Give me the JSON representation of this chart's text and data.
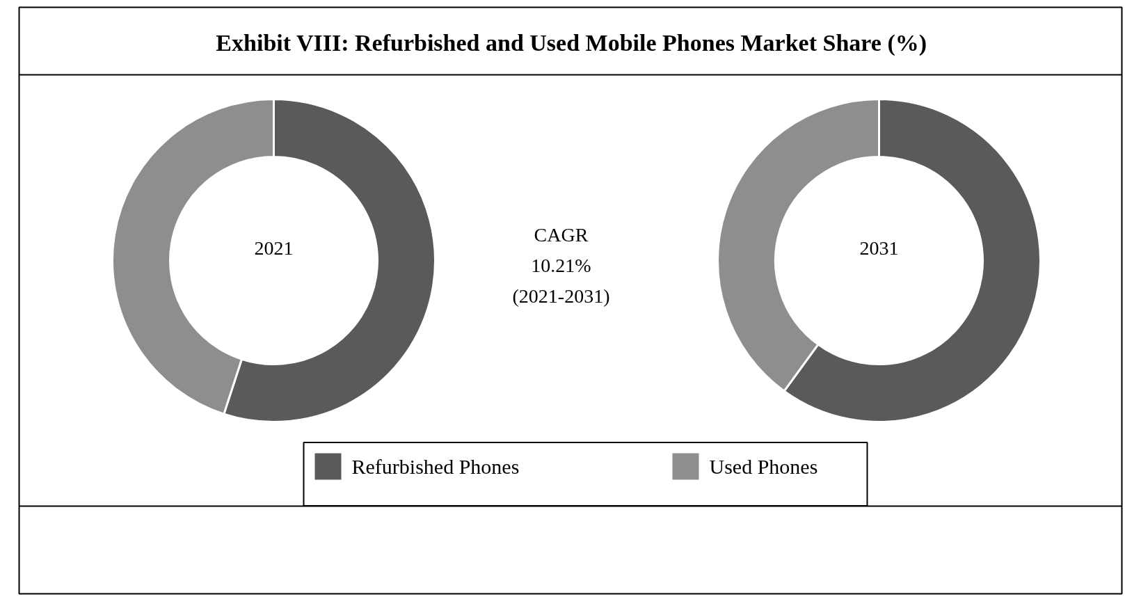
{
  "chart_data": [
    {
      "type": "donut",
      "title": "Exhibit VIII: Refurbished and Used Mobile Phones Market Share (%)",
      "subtitle": "2021",
      "categories": [
        "Refurbished Phones",
        "Used Phones"
      ],
      "values": [
        55,
        45
      ],
      "colors": [
        "#5a5a5a",
        "#8e8e8e"
      ],
      "legend": "bottom",
      "annotations": [
        "CAGR",
        "10.21%",
        "(2021-2031)"
      ]
    },
    {
      "type": "donut",
      "subtitle": "2031",
      "categories": [
        null,
        null
      ],
      "values": [
        60,
        40
      ],
      "colors": [
        "#5a5a5a",
        "#8e8e8e"
      ]
    }
  ]
}
